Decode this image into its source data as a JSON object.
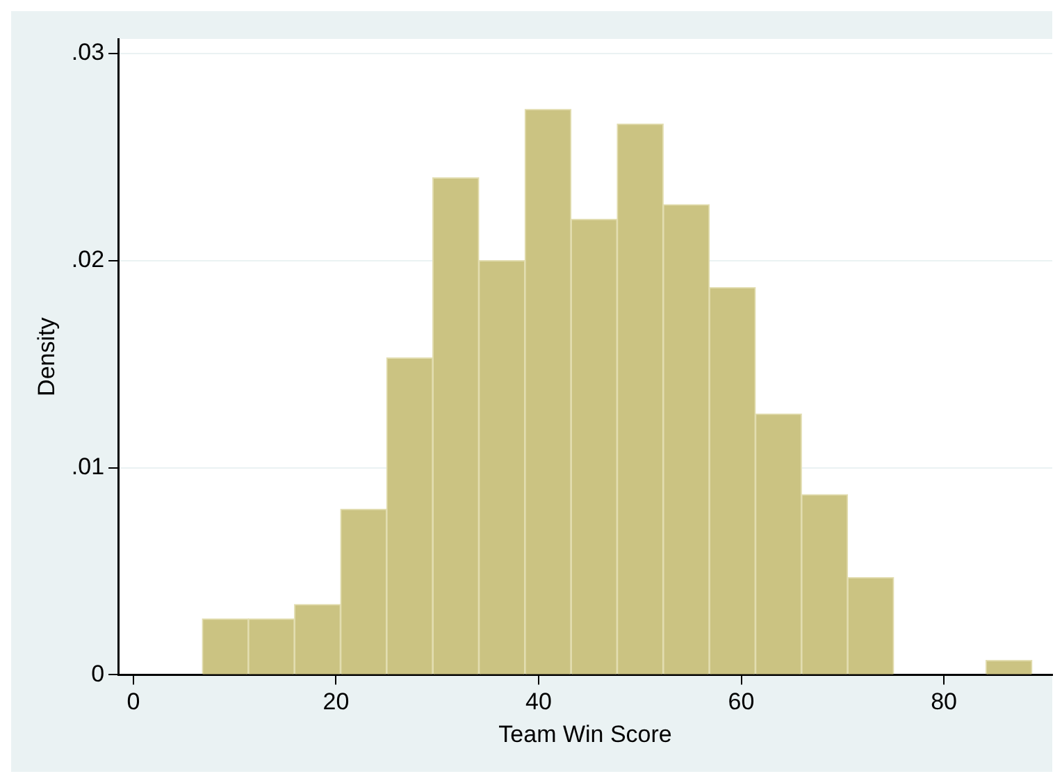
{
  "chart_data": {
    "type": "histogram",
    "xlabel": "Team Win Score",
    "ylabel": "Density",
    "bins": [
      6.8,
      11.35,
      15.9,
      20.45,
      25,
      29.55,
      34.1,
      38.65,
      43.2,
      47.75,
      52.3,
      56.85,
      61.4,
      65.95,
      70.5,
      75.05,
      79.6,
      84.15,
      88.7
    ],
    "values": [
      0.0027,
      0.0027,
      0.0034,
      0.008,
      0.0153,
      0.024,
      0.02,
      0.0273,
      0.022,
      0.0266,
      0.0227,
      0.0187,
      0.0126,
      0.0087,
      0.0047,
      0,
      0,
      0.0007
    ],
    "color": "#cbc382",
    "xlim": [
      -1.5,
      90.7
    ],
    "xticks": [
      0,
      20,
      40,
      60,
      80
    ],
    "ylim": [
      0,
      0.0307
    ],
    "yticks": [
      0,
      {
        "value": 0.01,
        "label": ".01"
      },
      {
        "value": 0.02,
        "label": ".02"
      },
      {
        "value": 0.03,
        "label": ".03"
      }
    ],
    "grid": "y",
    "legend": false
  }
}
